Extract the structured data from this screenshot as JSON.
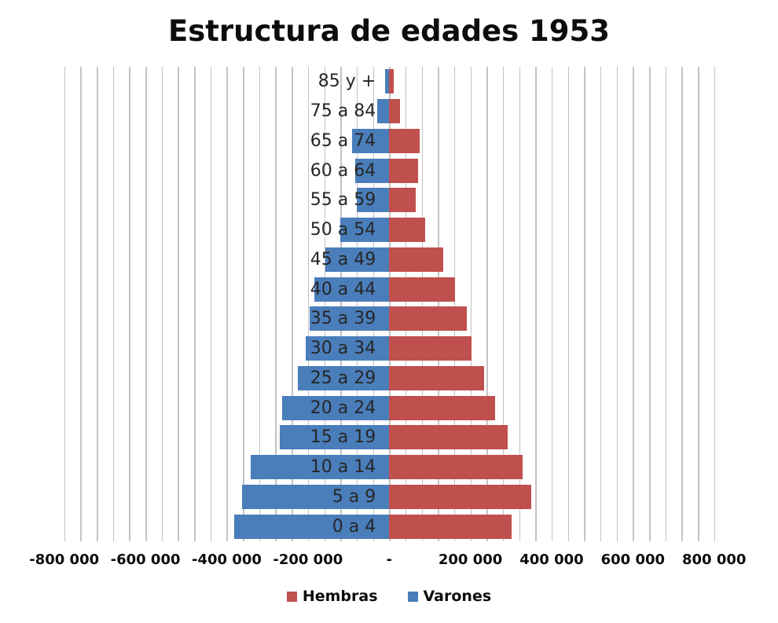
{
  "chart_data": {
    "type": "bar",
    "subtype": "population-pyramid",
    "title": "Estructura de edades 1953",
    "orientation": "horizontal-diverging",
    "categories": [
      "85 y +",
      "75 a 84",
      "65 a 74",
      "60 a 64",
      "55 a 59",
      "50 a 54",
      "45 a 49",
      "40 a 44",
      "35 a 39",
      "30 a 34",
      "25 a 29",
      "20 a 24",
      "15 a 19",
      "10 a 14",
      "5 a 9",
      "0 a 4"
    ],
    "series": [
      {
        "name": "Hembras",
        "color": "#C0504D",
        "values": [
          12000,
          27000,
          76000,
          71000,
          65000,
          89000,
          134000,
          163000,
          192000,
          202000,
          233000,
          260000,
          291000,
          329000,
          350000,
          302000
        ]
      },
      {
        "name": "Varones",
        "color": "#4A7EBB",
        "values": [
          -10000,
          -30000,
          -91000,
          -83000,
          -80000,
          -121000,
          -157000,
          -185000,
          -195000,
          -206000,
          -225000,
          -264000,
          -269000,
          -341000,
          -362000,
          -382000
        ]
      }
    ],
    "x_axis": {
      "min": -800000,
      "max": 800000,
      "gridline_interval": 40000,
      "grid": true,
      "tick_labels": [
        {
          "value": -800000,
          "label": "-800 000"
        },
        {
          "value": -600000,
          "label": "-600 000"
        },
        {
          "value": -400000,
          "label": "-400 000"
        },
        {
          "value": -200000,
          "label": "-200 000"
        },
        {
          "value": 0,
          "label": "-"
        },
        {
          "value": 200000,
          "label": "200 000"
        },
        {
          "value": 400000,
          "label": "400 000"
        },
        {
          "value": 600000,
          "label": "600 000"
        },
        {
          "value": 800000,
          "label": "800 000"
        }
      ]
    },
    "legend": {
      "position": "bottom",
      "entries": [
        {
          "label": "Hembras",
          "color": "#C0504D"
        },
        {
          "label": "Varones",
          "color": "#4A7EBB"
        }
      ]
    },
    "colors": {
      "hembras": "#C0504D",
      "varones": "#4A7EBB",
      "gridline": "#C3C3C3",
      "text": "#0D0D0D"
    }
  }
}
